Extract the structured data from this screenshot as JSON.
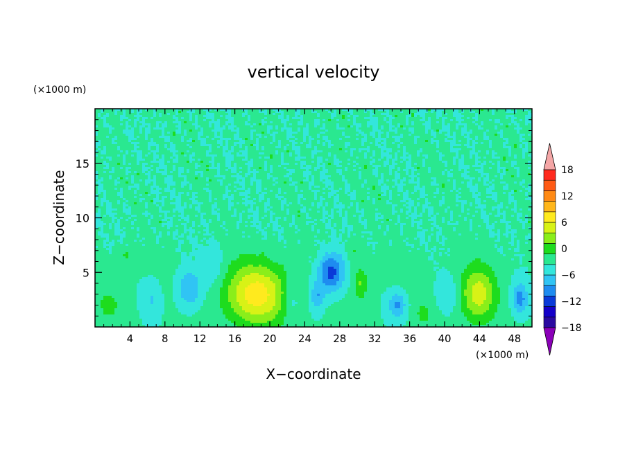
{
  "chart_data": {
    "type": "heatmap",
    "title": "vertical velocity",
    "xlabel": "X−coordinate",
    "ylabel": "Z−coordinate",
    "x_unit": "(×1000 m)",
    "y_unit": "(×1000 m)",
    "xlim": [
      0,
      50
    ],
    "ylim": [
      0,
      20
    ],
    "x_ticks": [
      4,
      8,
      12,
      16,
      20,
      24,
      28,
      32,
      36,
      40,
      44,
      48
    ],
    "x_tick_labels": [
      "4",
      "8",
      "12",
      "16",
      "20",
      "24",
      "28",
      "32",
      "36",
      "40",
      "44",
      "48"
    ],
    "y_ticks": [
      5,
      10,
      15
    ],
    "y_tick_labels": [
      "5",
      "10",
      "15"
    ],
    "colorbar": {
      "min": -21,
      "max": 21,
      "step": 3,
      "labels": [
        "18",
        "12",
        "6",
        "0",
        "−6",
        "−12",
        "−18"
      ],
      "label_values": [
        18,
        12,
        6,
        0,
        -6,
        -12,
        -18
      ],
      "colors": [
        "#7a00a8",
        "#2a0aa0",
        "#1400c8",
        "#0a3ad8",
        "#1e8cf0",
        "#30c4f4",
        "#33e6dc",
        "#2ae890",
        "#1edc1e",
        "#8aee1a",
        "#d8f216",
        "#ffea1e",
        "#ffb61a",
        "#ff8a14",
        "#ff5a14",
        "#ff2a1e",
        "#f6a5a5"
      ],
      "under_color": "#8a00b8",
      "over_color": "#f4a6a6"
    },
    "features": [
      {
        "x": 18.5,
        "z": 3,
        "sx": 3.6,
        "sz": 2.8,
        "amp": 13
      },
      {
        "x": 43.8,
        "z": 3,
        "sx": 2.0,
        "sz": 2.5,
        "amp": 10
      },
      {
        "x": 30.4,
        "z": 4,
        "sx": 0.8,
        "sz": 1.5,
        "amp": 6
      },
      {
        "x": 29.6,
        "z": 7,
        "sx": 0.7,
        "sz": 1.2,
        "amp": 3
      },
      {
        "x": 1.6,
        "z": 2,
        "sx": 1.1,
        "sz": 1.2,
        "amp": 4
      },
      {
        "x": 37.6,
        "z": 1.2,
        "sx": 0.9,
        "sz": 1.0,
        "amp": 3.5
      },
      {
        "x": 3.5,
        "z": 6.5,
        "sx": 0.8,
        "sz": 1.0,
        "amp": 3
      },
      {
        "x": 13.5,
        "z": 5.5,
        "sx": 1.3,
        "sz": 2.0,
        "amp": -3
      },
      {
        "x": 10.8,
        "z": 3.5,
        "sx": 1.4,
        "sz": 1.8,
        "amp": -6.5
      },
      {
        "x": 27.0,
        "z": 5,
        "sx": 1.5,
        "sz": 1.8,
        "amp": -11
      },
      {
        "x": 25.4,
        "z": 2.8,
        "sx": 0.8,
        "sz": 1.3,
        "amp": -6
      },
      {
        "x": 34.6,
        "z": 2,
        "sx": 1.0,
        "sz": 1.2,
        "amp": -7
      },
      {
        "x": 48.6,
        "z": 2.6,
        "sx": 0.9,
        "sz": 1.4,
        "amp": -8
      },
      {
        "x": 22.5,
        "z": 2.5,
        "sx": 1.0,
        "sz": 1.8,
        "amp": -3.5
      },
      {
        "x": 6.5,
        "z": 2.5,
        "sx": 1.0,
        "sz": 1.6,
        "amp": -3.5
      },
      {
        "x": 40.5,
        "z": 3,
        "sx": 1.2,
        "sz": 1.6,
        "amp": -3
      }
    ]
  }
}
